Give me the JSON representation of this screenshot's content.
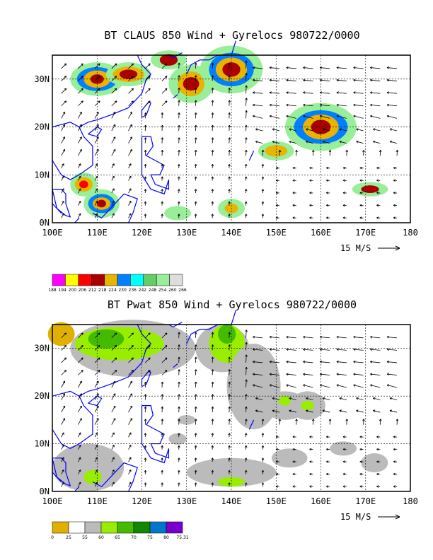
{
  "panels": [
    {
      "id": "claus",
      "title": "BT CLAUS 850 Wind + Gyrelocs 980722/0000",
      "x_ticks": [
        "100E",
        "110E",
        "120E",
        "130E",
        "140E",
        "150E",
        "160E",
        "170E",
        "180"
      ],
      "y_ticks": [
        "0N",
        "10N",
        "20N",
        "30N"
      ],
      "vector_key": "15 M/S",
      "colorbar_labels": [
        "188",
        "194",
        "200",
        "206",
        "212",
        "218",
        "224",
        "230",
        "236",
        "242",
        "248",
        "254",
        "260",
        "266"
      ],
      "colorbar_colors": [
        "#ff00ff",
        "#ffff00",
        "#ff0000",
        "#aa0000",
        "#e8b400",
        "#0080ff",
        "#00ffff",
        "#66cc66",
        "#99ee99",
        "#dddddd"
      ]
    },
    {
      "id": "pwat",
      "title": "BT Pwat 850 Wind + Gyrelocs 980722/0000",
      "x_ticks": [
        "100E",
        "110E",
        "120E",
        "130E",
        "140E",
        "150E",
        "160E",
        "170E",
        "180"
      ],
      "y_ticks": [
        "0N",
        "10N",
        "20N",
        "30N"
      ],
      "vector_key": "15 M/S",
      "colorbar_labels": [
        "0",
        "25",
        "55",
        "60",
        "65",
        "70",
        "75",
        "80",
        "75.31"
      ],
      "colorbar_colors": [
        "#e0b000",
        "#ffffff",
        "#bbbbbb",
        "#99ee00",
        "#44bb00",
        "#118800",
        "#0077cc",
        "#7700cc"
      ]
    }
  ],
  "colors": {
    "coast": "#0000ff",
    "grid": "#000000"
  }
}
